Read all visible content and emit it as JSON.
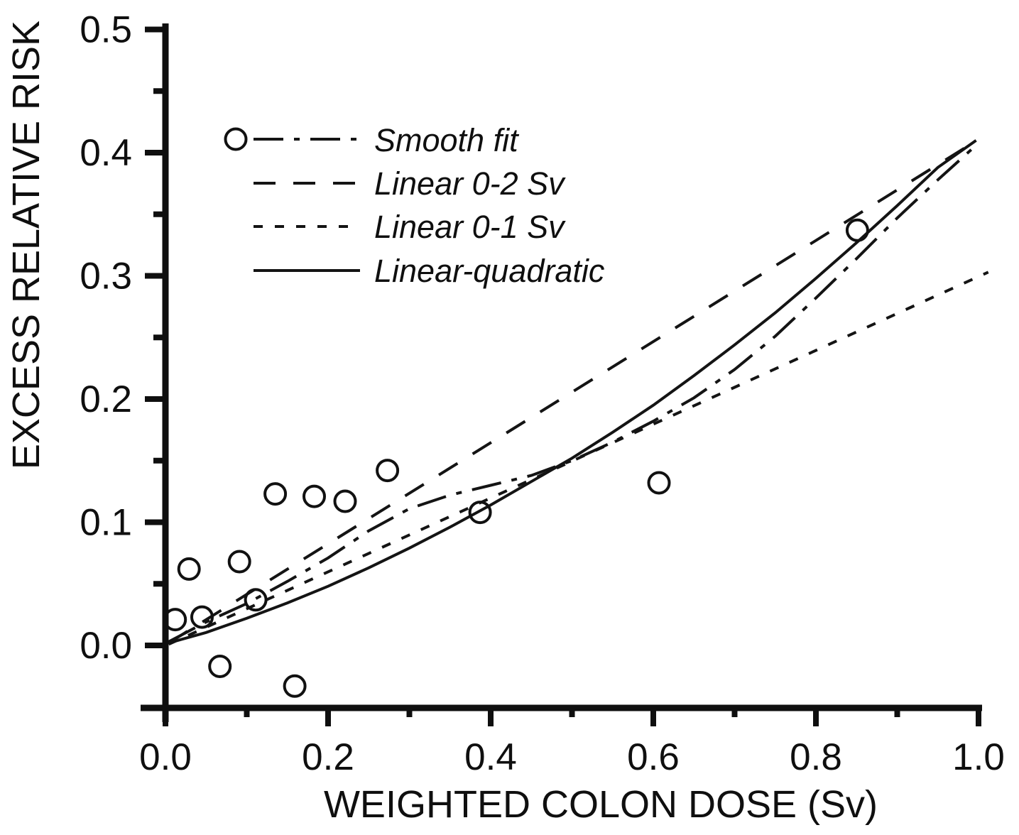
{
  "figure": {
    "background_color": "#ffffff",
    "ink_color": "#0f0f0f"
  },
  "chart_data": {
    "type": "scatter",
    "title": "",
    "xlabel": "WEIGHTED COLON DOSE (Sv)",
    "ylabel": "EXCESS RELATIVE RISK",
    "xlim": [
      0.0,
      1.0
    ],
    "ylim": [
      -0.05,
      0.5
    ],
    "grid": false,
    "legend_position": "upper-left",
    "x_axis": {
      "major_ticks": [
        0.0,
        0.2,
        0.4,
        0.6,
        0.8,
        1.0
      ],
      "major_tick_labels": [
        "0.0",
        "0.2",
        "0.4",
        "0.6",
        "0.8",
        "1.0"
      ],
      "minor_ticks": [
        0.1,
        0.3,
        0.5,
        0.7,
        0.9
      ]
    },
    "y_axis": {
      "major_ticks": [
        0.0,
        0.1,
        0.2,
        0.3,
        0.4,
        0.5
      ],
      "major_tick_labels": [
        "0.0",
        "0.1",
        "0.2",
        "0.3",
        "0.4",
        "0.5"
      ],
      "minor_ticks": [
        0.05,
        0.15,
        0.25,
        0.35,
        0.45
      ]
    },
    "points_marker": "open-circle",
    "points": [
      {
        "dose": 0.012,
        "err": 0.021
      },
      {
        "dose": 0.029,
        "err": 0.062
      },
      {
        "dose": 0.045,
        "err": 0.023
      },
      {
        "dose": 0.067,
        "err": -0.017
      },
      {
        "dose": 0.091,
        "err": 0.068
      },
      {
        "dose": 0.111,
        "err": 0.037
      },
      {
        "dose": 0.135,
        "err": 0.123
      },
      {
        "dose": 0.159,
        "err": -0.033
      },
      {
        "dose": 0.183,
        "err": 0.121
      },
      {
        "dose": 0.221,
        "err": 0.117
      },
      {
        "dose": 0.273,
        "err": 0.142
      },
      {
        "dose": 0.387,
        "err": 0.108
      },
      {
        "dose": 0.607,
        "err": 0.132
      },
      {
        "dose": 0.851,
        "err": 0.337
      }
    ],
    "series": [
      {
        "name": "Smooth fit",
        "line_style": "dash-dot",
        "dash_array": "42 15 8 15",
        "x": [
          0.004,
          0.05,
          0.1,
          0.15,
          0.2,
          0.25,
          0.3,
          0.35,
          0.4,
          0.45,
          0.5,
          0.55,
          0.6,
          0.65,
          0.7,
          0.75,
          0.8,
          0.85,
          0.9,
          0.95,
          0.997
        ],
        "y": [
          0.003,
          0.019,
          0.034,
          0.052,
          0.071,
          0.093,
          0.111,
          0.122,
          0.13,
          0.138,
          0.15,
          0.165,
          0.182,
          0.201,
          0.224,
          0.251,
          0.282,
          0.314,
          0.347,
          0.378,
          0.406
        ]
      },
      {
        "name": "Linear 0-2 Sv",
        "line_style": "long-dash",
        "dash_array": "31 25",
        "x": [
          0.004,
          0.998
        ],
        "y": [
          0.002,
          0.41
        ]
      },
      {
        "name": "Linear 0-1 Sv",
        "line_style": "short-dash",
        "dash_array": "13 17",
        "x": [
          0.004,
          1.012
        ],
        "y": [
          0.001,
          0.303
        ]
      },
      {
        "name": "Linear-quadratic",
        "line_style": "solid",
        "dash_array": "",
        "x": [
          0.004,
          0.05,
          0.1,
          0.15,
          0.2,
          0.25,
          0.3,
          0.35,
          0.4,
          0.45,
          0.5,
          0.55,
          0.6,
          0.65,
          0.7,
          0.75,
          0.8,
          0.85,
          0.9,
          0.95,
          0.997
        ],
        "y": [
          0.002,
          0.0105,
          0.022,
          0.0345,
          0.048,
          0.063,
          0.079,
          0.096,
          0.114,
          0.133,
          0.152,
          0.173,
          0.195,
          0.219,
          0.244,
          0.27,
          0.298,
          0.327,
          0.357,
          0.388,
          0.41
        ]
      }
    ]
  }
}
